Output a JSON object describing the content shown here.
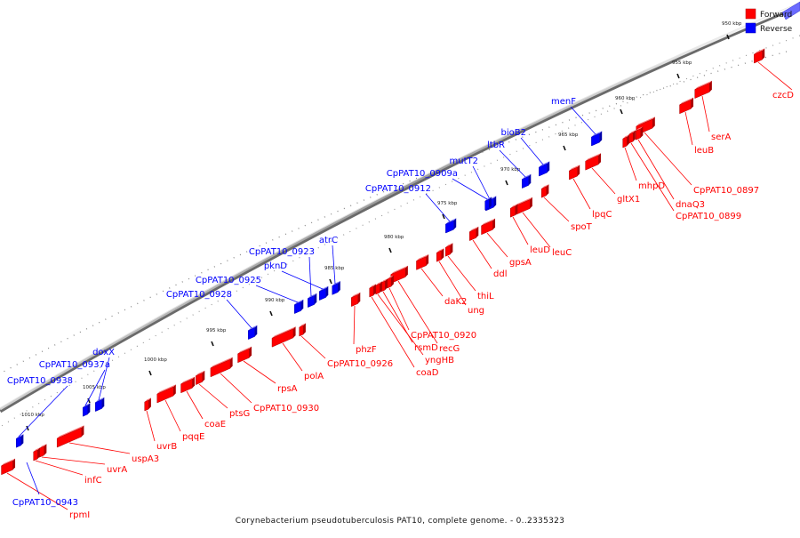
{
  "caption": "Corynebacterium pseudotuberculosis PAT10, complete genome. - 0..2335323",
  "legend": [
    {
      "label": "Forward",
      "color": "#ff0000"
    },
    {
      "label": "Reverse",
      "color": "#0000ff"
    }
  ],
  "colors": {
    "forward": "#ff0000",
    "reverse": "#0000ff",
    "backbone": "#888888"
  },
  "ticks": [
    "950 kbp",
    "955 kbp",
    "960 kbp",
    "965 kbp",
    "970 kbp",
    "975 kbp",
    "980 kbp",
    "985 kbp",
    "990 kbp",
    "995 kbp",
    "1000 kbp",
    "1005 kbp",
    "1010 kbp"
  ],
  "forward_genes": [
    {
      "label": "czcD"
    },
    {
      "label": "serA"
    },
    {
      "label": "leuB"
    },
    {
      "label": "CpPAT10_0897"
    },
    {
      "label": "dnaQ3"
    },
    {
      "label": "CpPAT10_0899"
    },
    {
      "label": "mhpD"
    },
    {
      "label": "gltX1"
    },
    {
      "label": "lpqC"
    },
    {
      "label": "spoT"
    },
    {
      "label": "leuC"
    },
    {
      "label": "leuD"
    },
    {
      "label": "gpsA"
    },
    {
      "label": "ddl"
    },
    {
      "label": "thiL"
    },
    {
      "label": "ung"
    },
    {
      "label": "daK2"
    },
    {
      "label": "recG"
    },
    {
      "label": "CpPAT10_0920"
    },
    {
      "label": "rsmD"
    },
    {
      "label": "yngHB"
    },
    {
      "label": "coaD"
    },
    {
      "label": "phzF"
    },
    {
      "label": "CpPAT10_0926"
    },
    {
      "label": "polA"
    },
    {
      "label": "rpsA"
    },
    {
      "label": "CpPAT10_0930"
    },
    {
      "label": "ptsG"
    },
    {
      "label": "coaE"
    },
    {
      "label": "pqqE"
    },
    {
      "label": "uvrB"
    },
    {
      "label": "uspA3"
    },
    {
      "label": "uvrA"
    },
    {
      "label": "infC"
    },
    {
      "label": "rpmI"
    }
  ],
  "reverse_genes": [
    {
      "label": "menF"
    },
    {
      "label": "bioB2"
    },
    {
      "label": "ltbR"
    },
    {
      "label": "mutT2"
    },
    {
      "label": "CpPAT10_0909a"
    },
    {
      "label": "CpPAT10_0912"
    },
    {
      "label": "atrC"
    },
    {
      "label": "pknD"
    },
    {
      "label": "CpPAT10_0923"
    },
    {
      "label": "CpPAT10_0925"
    },
    {
      "label": "CpPAT10_0928"
    },
    {
      "label": "doxX"
    },
    {
      "label": "CpPAT10_0937a"
    },
    {
      "label": "CpPAT10_0938"
    },
    {
      "label": "CpPAT10_0943"
    }
  ]
}
